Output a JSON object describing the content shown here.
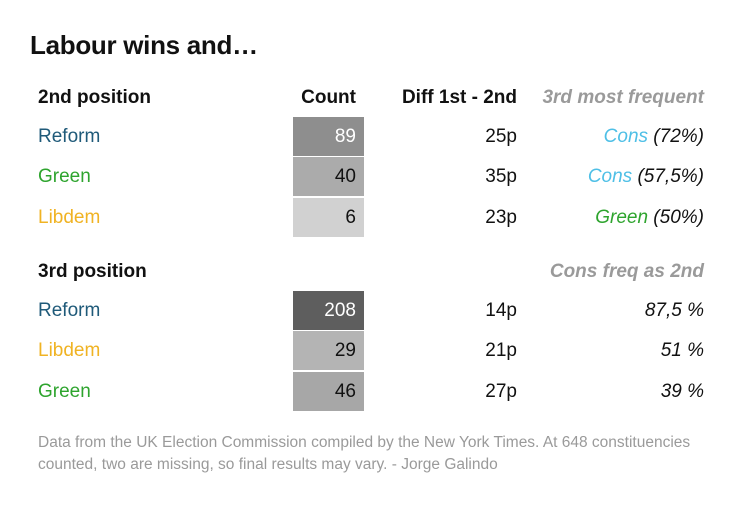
{
  "title": "Labour wins and…",
  "colors": {
    "Reform": "#1f5a79",
    "Green": "#2ea42e",
    "Libdem": "#f0b323",
    "Cons": "#4ebfe6",
    "header_grey": "#9a9a9a"
  },
  "chart_data": {
    "type": "table",
    "title": "Labour wins and…",
    "sections": [
      {
        "heading": "2nd position",
        "columns": [
          "2nd position",
          "Count",
          "Diff 1st - 2nd",
          "3rd most frequent"
        ],
        "rows": [
          {
            "party": "Reform",
            "count": 89,
            "diff": "25p",
            "third_party": "Cons",
            "third_share": "(72%)"
          },
          {
            "party": "Green",
            "count": 40,
            "diff": "35p",
            "third_party": "Cons",
            "third_share": "(57,5%)"
          },
          {
            "party": "Libdem",
            "count": 6,
            "diff": "23p",
            "third_party": "Green",
            "third_share": "(50%)"
          }
        ]
      },
      {
        "heading": "3rd position",
        "columns": [
          "3rd position",
          "",
          "",
          "Cons freq as 2nd"
        ],
        "rows": [
          {
            "party": "Reform",
            "count": 208,
            "diff": "14p",
            "cons_freq": "87,5 %"
          },
          {
            "party": "Libdem",
            "count": 29,
            "diff": "21p",
            "cons_freq": "51 %"
          },
          {
            "party": "Green",
            "count": 46,
            "diff": "27p",
            "cons_freq": "39 %"
          }
        ]
      }
    ],
    "color_scale": {
      "min_count": 0,
      "max_count": 208,
      "light": "#e8e8e8",
      "dark": "#5e5e5e"
    }
  },
  "footer": "Data from the UK Election Commission compiled by the New York Times. At 648 constituencies counted, two are missing, so final results may vary. - Jorge Galindo"
}
